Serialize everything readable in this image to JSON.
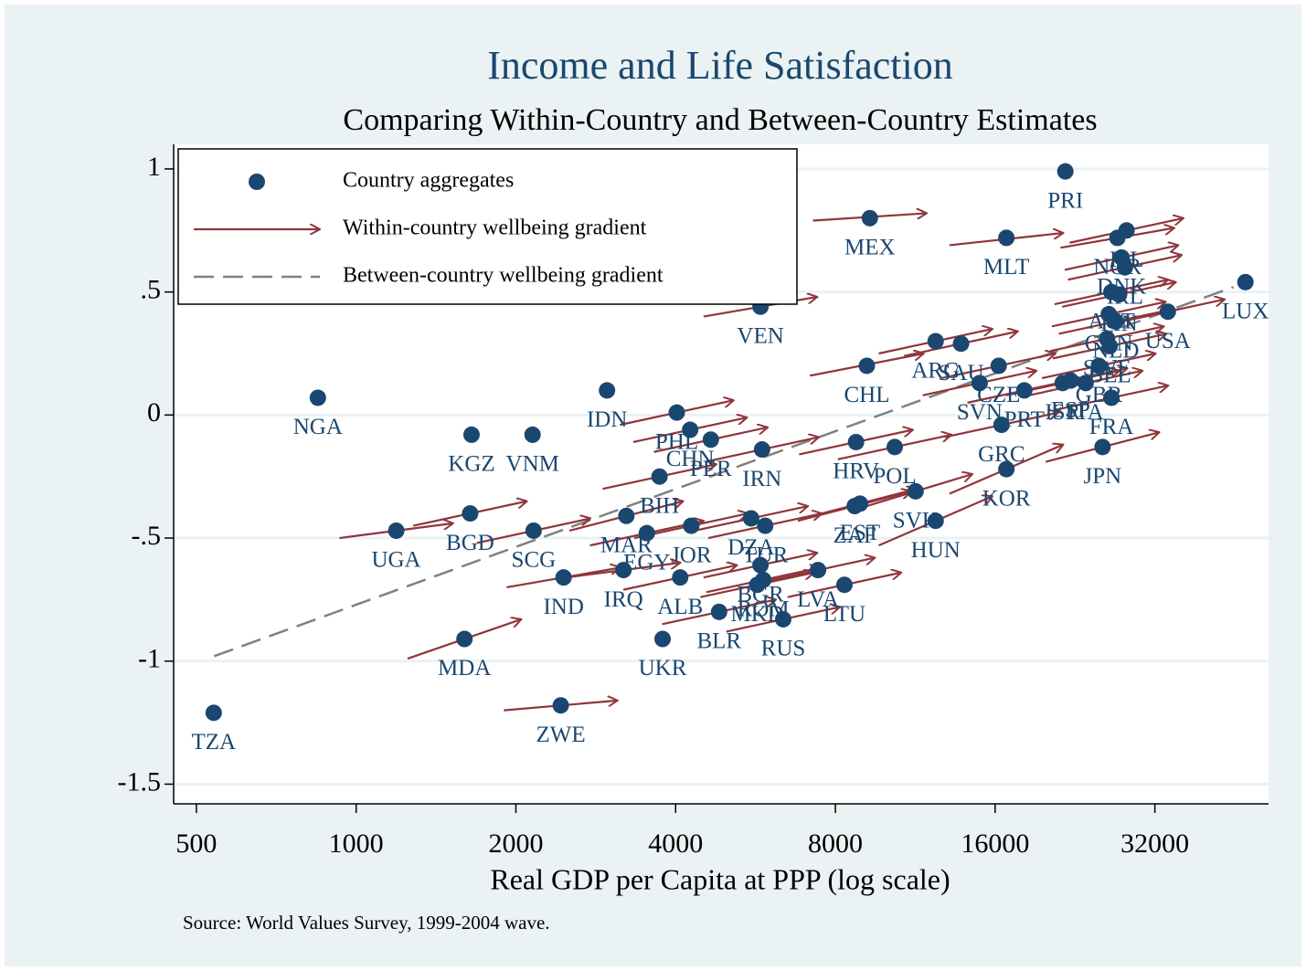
{
  "chart_data": {
    "type": "scatter",
    "title": "Income and Life Satisfaction",
    "subtitle": "Comparing Within-Country and Between-Country Estimates",
    "x_label": "Real GDP per Capita at PPP (log scale)",
    "source": "Source: World Values Survey, 1999-2004 wave.",
    "xscale": "log",
    "grid": true,
    "legend_position": "upper left",
    "xlim": [
      453,
      52400
    ],
    "ylim": [
      -1.58,
      1.1
    ],
    "xticks": [
      500,
      1000,
      2000,
      4000,
      8000,
      16000,
      32000
    ],
    "yticks": [
      1,
      {
        "value": 0.5,
        "label": ".5"
      },
      0,
      {
        "value": -0.5,
        "label": "-.5"
      },
      {
        "value": -1,
        "label": "-1"
      },
      {
        "value": -1.5,
        "label": "-1.5"
      }
    ],
    "series": [
      {
        "name": "Country aggregates",
        "color": "#1a476f"
      },
      {
        "name": "Within-country wellbeing gradient",
        "color": "#90353b"
      },
      {
        "name": "Between-country wellbeing gradient",
        "color": "#808080"
      }
    ],
    "fit_line": {
      "x": [
        540,
        45000
      ],
      "y": [
        -0.98,
        0.52
      ]
    },
    "points": [
      {
        "label": "TZA",
        "x": 539,
        "y": -1.21
      },
      {
        "label": "NGA",
        "x": 847,
        "y": 0.07
      },
      {
        "label": "UGA",
        "x": 1190,
        "y": -0.47,
        "arrow": [
          930,
          -0.5,
          1523,
          -0.44
        ]
      },
      {
        "label": "KGZ",
        "x": 1650,
        "y": -0.08
      },
      {
        "label": "BGD",
        "x": 1640,
        "y": -0.4,
        "arrow": [
          1281,
          -0.45,
          2099,
          -0.35
        ]
      },
      {
        "label": "MDA",
        "x": 1600,
        "y": -0.91,
        "arrow": [
          1250,
          -0.99,
          2048,
          -0.83
        ]
      },
      {
        "label": "VNM",
        "x": 2150,
        "y": -0.08
      },
      {
        "label": "SCG",
        "x": 2160,
        "y": -0.47,
        "arrow": [
          1688,
          -0.52,
          2765,
          -0.42
        ]
      },
      {
        "label": "IND",
        "x": 2460,
        "y": -0.66,
        "arrow": [
          1922,
          -0.7,
          3149,
          -0.62
        ]
      },
      {
        "label": "ZWE",
        "x": 2430,
        "y": -1.18,
        "arrow": [
          1898,
          -1.2,
          3110,
          -1.16
        ]
      },
      {
        "label": "IDN",
        "x": 2970,
        "y": 0.1
      },
      {
        "label": "IRQ",
        "x": 3190,
        "y": -0.63,
        "arrow": [
          2492,
          -0.66,
          4083,
          -0.6
        ]
      },
      {
        "label": "MAR",
        "x": 3230,
        "y": -0.41,
        "arrow": [
          2523,
          -0.47,
          4134,
          -0.35
        ]
      },
      {
        "label": "EGY",
        "x": 3530,
        "y": -0.48,
        "arrow": [
          2758,
          -0.53,
          4518,
          -0.43
        ]
      },
      {
        "label": "BIH",
        "x": 3730,
        "y": -0.25,
        "arrow": [
          2914,
          -0.3,
          4774,
          -0.2
        ]
      },
      {
        "label": "UKR",
        "x": 3780,
        "y": -0.91
      },
      {
        "label": "PHL",
        "x": 4020,
        "y": 0.01,
        "arrow": [
          3141,
          -0.04,
          5146,
          0.06
        ]
      },
      {
        "label": "ALB",
        "x": 4080,
        "y": -0.66,
        "arrow": [
          3188,
          -0.71,
          5222,
          -0.61
        ]
      },
      {
        "label": "CHN",
        "x": 4260,
        "y": -0.06,
        "arrow": [
          3328,
          -0.11,
          5453,
          -0.01
        ]
      },
      {
        "label": "JOR",
        "x": 4280,
        "y": -0.45,
        "arrow": [
          3344,
          -0.5,
          5478,
          -0.4
        ]
      },
      {
        "label": "PER",
        "x": 4660,
        "y": -0.1,
        "arrow": [
          3641,
          -0.15,
          5965,
          -0.05
        ]
      },
      {
        "label": "BLR",
        "x": 4830,
        "y": -0.8,
        "arrow": [
          3773,
          -0.85,
          6182,
          -0.75
        ]
      },
      {
        "label": "DZA",
        "x": 5550,
        "y": -0.42,
        "arrow": [
          4336,
          -0.47,
          7104,
          -0.37
        ]
      },
      {
        "label": "BGR",
        "x": 5780,
        "y": -0.61,
        "arrow": [
          4516,
          -0.66,
          7398,
          -0.56
        ]
      },
      {
        "label": "ROM",
        "x": 5850,
        "y": -0.67,
        "arrow": [
          4570,
          -0.72,
          7488,
          -0.62
        ]
      },
      {
        "label": "MKD",
        "x": 5700,
        "y": -0.69,
        "arrow": [
          4453,
          -0.74,
          7296,
          -0.64
        ]
      },
      {
        "label": "VEN",
        "x": 5780,
        "y": 0.44,
        "arrow": [
          4516,
          0.4,
          7398,
          0.48
        ]
      },
      {
        "label": "IRN",
        "x": 5820,
        "y": -0.14,
        "arrow": [
          4547,
          -0.19,
          7450,
          -0.09
        ]
      },
      {
        "label": "TUR",
        "x": 5900,
        "y": -0.45,
        "arrow": [
          4609,
          -0.5,
          7552,
          -0.4
        ]
      },
      {
        "label": "RUS",
        "x": 6380,
        "y": -0.83,
        "arrow": [
          4984,
          -0.88,
          8166,
          -0.78
        ]
      },
      {
        "label": "LVA",
        "x": 7420,
        "y": -0.63,
        "arrow": [
          5797,
          -0.68,
          9498,
          -0.58
        ]
      },
      {
        "label": "LTU",
        "x": 8320,
        "y": -0.69,
        "arrow": [
          6500,
          -0.74,
          10650,
          -0.64
        ]
      },
      {
        "label": "HRV",
        "x": 8750,
        "y": -0.11,
        "arrow": [
          6836,
          -0.16,
          11200,
          -0.06
        ]
      },
      {
        "label": "ZAF",
        "x": 8700,
        "y": -0.37,
        "arrow": [
          6797,
          -0.43,
          11136,
          -0.31
        ]
      },
      {
        "label": "EST",
        "x": 8900,
        "y": -0.36,
        "arrow": [
          6953,
          -0.42,
          11392,
          -0.3
        ]
      },
      {
        "label": "CHL",
        "x": 9170,
        "y": 0.2,
        "arrow": [
          7164,
          0.16,
          11738,
          0.25
        ]
      },
      {
        "label": "MEX",
        "x": 9290,
        "y": 0.8,
        "arrow": [
          7258,
          0.79,
          11891,
          0.82
        ]
      },
      {
        "label": "POL",
        "x": 10350,
        "y": -0.13,
        "arrow": [
          8086,
          -0.18,
          13248,
          -0.08
        ]
      },
      {
        "label": "SVK",
        "x": 11330,
        "y": -0.31,
        "arrow": [
          8852,
          -0.38,
          14502,
          -0.24
        ]
      },
      {
        "label": "HUN",
        "x": 12360,
        "y": -0.43,
        "arrow": [
          9656,
          -0.53,
          15821,
          -0.33
        ]
      },
      {
        "label": "ARG",
        "x": 12360,
        "y": 0.3,
        "arrow": [
          9656,
          0.25,
          15821,
          0.35
        ]
      },
      {
        "label": "SAU",
        "x": 13800,
        "y": 0.29,
        "arrow": [
          10781,
          0.24,
          17664,
          0.34
        ]
      },
      {
        "label": "SVN",
        "x": 14960,
        "y": 0.13,
        "arrow": [
          11688,
          0.08,
          19149,
          0.18
        ]
      },
      {
        "label": "CZE",
        "x": 16250,
        "y": 0.2,
        "arrow": [
          12695,
          0.15,
          20800,
          0.25
        ]
      },
      {
        "label": "GRC",
        "x": 16450,
        "y": -0.04,
        "arrow": [
          12852,
          -0.09,
          21056,
          0.01
        ]
      },
      {
        "label": "KOR",
        "x": 16800,
        "y": -0.22,
        "arrow": [
          13125,
          -0.32,
          21504,
          -0.12
        ]
      },
      {
        "label": "MLT",
        "x": 16800,
        "y": 0.72,
        "arrow": [
          13125,
          0.69,
          21504,
          0.74
        ]
      },
      {
        "label": "PRT",
        "x": 18160,
        "y": 0.1,
        "arrow": [
          14188,
          0.05,
          23245,
          0.15
        ]
      },
      {
        "label": "ISR",
        "x": 21450,
        "y": 0.13,
        "arrow": [
          16758,
          0.08,
          27456,
          0.18
        ]
      },
      {
        "label": "ESP",
        "x": 22200,
        "y": 0.14,
        "arrow": [
          17344,
          0.09,
          28416,
          0.19
        ]
      },
      {
        "label": "PRI",
        "x": 21700,
        "y": 0.99
      },
      {
        "label": "ITA",
        "x": 23700,
        "y": 0.13,
        "arrow": [
          18516,
          0.08,
          30336,
          0.18
        ]
      },
      {
        "label": "GBR",
        "x": 25100,
        "y": 0.2,
        "arrow": [
          19609,
          0.15,
          32128,
          0.25
        ]
      },
      {
        "label": "FRA",
        "x": 26500,
        "y": 0.07,
        "arrow": [
          20703,
          0.02,
          33920,
          0.12
        ]
      },
      {
        "label": "JPN",
        "x": 25500,
        "y": -0.13,
        "arrow": [
          19922,
          -0.19,
          32640,
          -0.07
        ]
      },
      {
        "label": "ISL",
        "x": 28300,
        "y": 0.75,
        "arrow": [
          22109,
          0.7,
          36224,
          0.8
        ]
      },
      {
        "label": "NOR",
        "x": 27200,
        "y": 0.72,
        "arrow": [
          21250,
          0.68,
          34816,
          0.76
        ]
      },
      {
        "label": "DNK",
        "x": 27700,
        "y": 0.64,
        "arrow": [
          21641,
          0.59,
          35456,
          0.69
        ]
      },
      {
        "label": "IRL",
        "x": 28100,
        "y": 0.6,
        "arrow": [
          21953,
          0.55,
          35968,
          0.65
        ]
      },
      {
        "label": "AUT",
        "x": 26500,
        "y": 0.5,
        "arrow": [
          20703,
          0.45,
          33920,
          0.55
        ]
      },
      {
        "label": "FIN",
        "x": 27400,
        "y": 0.49,
        "arrow": [
          21406,
          0.44,
          35072,
          0.54
        ]
      },
      {
        "label": "NLD",
        "x": 27000,
        "y": 0.38,
        "arrow": [
          21094,
          0.33,
          34560,
          0.43
        ]
      },
      {
        "label": "CAN",
        "x": 26200,
        "y": 0.41,
        "arrow": [
          20469,
          0.36,
          33536,
          0.46
        ]
      },
      {
        "label": "SWE",
        "x": 26000,
        "y": 0.31,
        "arrow": [
          20313,
          0.26,
          33280,
          0.36
        ]
      },
      {
        "label": "BEL",
        "x": 26300,
        "y": 0.28,
        "arrow": [
          20547,
          0.23,
          33664,
          0.33
        ]
      },
      {
        "label": "USA",
        "x": 33850,
        "y": 0.42,
        "arrow": [
          26445,
          0.37,
          43328,
          0.47
        ]
      },
      {
        "label": "LUX",
        "x": 47400,
        "y": 0.54
      }
    ]
  }
}
